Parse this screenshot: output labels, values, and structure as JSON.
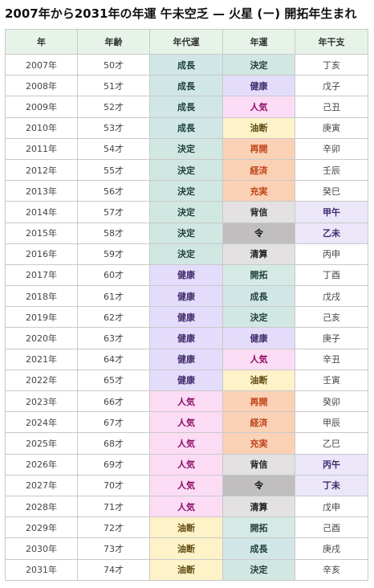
{
  "title": "2007年から2031年の年運 午未空乏 — 火星 (ー) 開拓年生まれ",
  "columns": [
    "年",
    "年齢",
    "年代運",
    "年運",
    "年干支"
  ],
  "rows": [
    {
      "year": "2007年",
      "age": "50才",
      "decade": "成長",
      "decade_color": "#d1e6e6",
      "decade_text": "#1e3f3f",
      "annual": "決定",
      "annual_color": "#d0e7e2",
      "annual_text": "#1f3f36",
      "stem": "丁亥",
      "stem_color": "#ffffff",
      "stem_text": "#444444",
      "stem_bold": false
    },
    {
      "year": "2008年",
      "age": "51才",
      "decade": "成長",
      "decade_color": "#d1e6e6",
      "decade_text": "#1e3f3f",
      "annual": "健康",
      "annual_color": "#e4dcfb",
      "annual_text": "#432f6e",
      "stem": "戊子",
      "stem_color": "#ffffff",
      "stem_text": "#444444",
      "stem_bold": false
    },
    {
      "year": "2009年",
      "age": "52才",
      "decade": "成長",
      "decade_color": "#d1e6e6",
      "decade_text": "#1e3f3f",
      "annual": "人気",
      "annual_color": "#fbdcf4",
      "annual_text": "#8e0d6b",
      "stem": "己丑",
      "stem_color": "#ffffff",
      "stem_text": "#444444",
      "stem_bold": false
    },
    {
      "year": "2010年",
      "age": "53才",
      "decade": "成長",
      "decade_color": "#d1e6e6",
      "decade_text": "#1e3f3f",
      "annual": "油断",
      "annual_color": "#fdf2c8",
      "annual_text": "#5e4a10",
      "stem": "庚寅",
      "stem_color": "#ffffff",
      "stem_text": "#444444",
      "stem_bold": false
    },
    {
      "year": "2011年",
      "age": "54才",
      "decade": "決定",
      "decade_color": "#d0e7e2",
      "decade_text": "#1f3f36",
      "annual": "再開",
      "annual_color": "#fbd1b5",
      "annual_text": "#c0441a",
      "stem": "辛卯",
      "stem_color": "#ffffff",
      "stem_text": "#444444",
      "stem_bold": false
    },
    {
      "year": "2012年",
      "age": "55才",
      "decade": "決定",
      "decade_color": "#d0e7e2",
      "decade_text": "#1f3f36",
      "annual": "経済",
      "annual_color": "#fbd1b5",
      "annual_text": "#c0441a",
      "stem": "壬辰",
      "stem_color": "#ffffff",
      "stem_text": "#444444",
      "stem_bold": false
    },
    {
      "year": "2013年",
      "age": "56才",
      "decade": "決定",
      "decade_color": "#d0e7e2",
      "decade_text": "#1f3f36",
      "annual": "充実",
      "annual_color": "#fbd1b5",
      "annual_text": "#c0441a",
      "stem": "癸巳",
      "stem_color": "#ffffff",
      "stem_text": "#444444",
      "stem_bold": false
    },
    {
      "year": "2014年",
      "age": "57才",
      "decade": "決定",
      "decade_color": "#d0e7e2",
      "decade_text": "#1f3f36",
      "annual": "背信",
      "annual_color": "#e3e1e1",
      "annual_text": "#222222",
      "stem": "甲午",
      "stem_color": "#ebe7f8",
      "stem_text": "#3b2b6e",
      "stem_bold": true
    },
    {
      "year": "2015年",
      "age": "58才",
      "decade": "決定",
      "decade_color": "#d0e7e2",
      "decade_text": "#1f3f36",
      "annual": "令",
      "annual_color": "#c0bebe",
      "annual_text": "#111111",
      "stem": "乙未",
      "stem_color": "#ebe7f8",
      "stem_text": "#3b2b6e",
      "stem_bold": true
    },
    {
      "year": "2016年",
      "age": "59才",
      "decade": "決定",
      "decade_color": "#d0e7e2",
      "decade_text": "#1f3f36",
      "annual": "清算",
      "annual_color": "#e3e1e1",
      "annual_text": "#222222",
      "stem": "丙申",
      "stem_color": "#ffffff",
      "stem_text": "#444444",
      "stem_bold": false
    },
    {
      "year": "2017年",
      "age": "60才",
      "decade": "健康",
      "decade_color": "#e4dcfb",
      "decade_text": "#432f6e",
      "annual": "開拓",
      "annual_color": "#d5eae5",
      "annual_text": "#1f3f36",
      "stem": "丁酉",
      "stem_color": "#ffffff",
      "stem_text": "#444444",
      "stem_bold": false
    },
    {
      "year": "2018年",
      "age": "61才",
      "decade": "健康",
      "decade_color": "#e4dcfb",
      "decade_text": "#432f6e",
      "annual": "成長",
      "annual_color": "#d1e6e6",
      "annual_text": "#1e3f3f",
      "stem": "戊戌",
      "stem_color": "#ffffff",
      "stem_text": "#444444",
      "stem_bold": false
    },
    {
      "year": "2019年",
      "age": "62才",
      "decade": "健康",
      "decade_color": "#e4dcfb",
      "decade_text": "#432f6e",
      "annual": "決定",
      "annual_color": "#d0e7e2",
      "annual_text": "#1f3f36",
      "stem": "己亥",
      "stem_color": "#ffffff",
      "stem_text": "#444444",
      "stem_bold": false
    },
    {
      "year": "2020年",
      "age": "63才",
      "decade": "健康",
      "decade_color": "#e4dcfb",
      "decade_text": "#432f6e",
      "annual": "健康",
      "annual_color": "#e4dcfb",
      "annual_text": "#432f6e",
      "stem": "庚子",
      "stem_color": "#ffffff",
      "stem_text": "#444444",
      "stem_bold": false
    },
    {
      "year": "2021年",
      "age": "64才",
      "decade": "健康",
      "decade_color": "#e4dcfb",
      "decade_text": "#432f6e",
      "annual": "人気",
      "annual_color": "#fbdcf4",
      "annual_text": "#8e0d6b",
      "stem": "辛丑",
      "stem_color": "#ffffff",
      "stem_text": "#444444",
      "stem_bold": false
    },
    {
      "year": "2022年",
      "age": "65才",
      "decade": "健康",
      "decade_color": "#e4dcfb",
      "decade_text": "#432f6e",
      "annual": "油断",
      "annual_color": "#fdf2c8",
      "annual_text": "#5e4a10",
      "stem": "壬寅",
      "stem_color": "#ffffff",
      "stem_text": "#444444",
      "stem_bold": false
    },
    {
      "year": "2023年",
      "age": "66才",
      "decade": "人気",
      "decade_color": "#fbdcf4",
      "decade_text": "#8e0d6b",
      "annual": "再開",
      "annual_color": "#fbd1b5",
      "annual_text": "#c0441a",
      "stem": "癸卯",
      "stem_color": "#ffffff",
      "stem_text": "#444444",
      "stem_bold": false
    },
    {
      "year": "2024年",
      "age": "67才",
      "decade": "人気",
      "decade_color": "#fbdcf4",
      "decade_text": "#8e0d6b",
      "annual": "経済",
      "annual_color": "#fbd1b5",
      "annual_text": "#c0441a",
      "stem": "甲辰",
      "stem_color": "#ffffff",
      "stem_text": "#444444",
      "stem_bold": false
    },
    {
      "year": "2025年",
      "age": "68才",
      "decade": "人気",
      "decade_color": "#fbdcf4",
      "decade_text": "#8e0d6b",
      "annual": "充実",
      "annual_color": "#fbd1b5",
      "annual_text": "#c0441a",
      "stem": "乙巳",
      "stem_color": "#ffffff",
      "stem_text": "#444444",
      "stem_bold": false
    },
    {
      "year": "2026年",
      "age": "69才",
      "decade": "人気",
      "decade_color": "#fbdcf4",
      "decade_text": "#8e0d6b",
      "annual": "背信",
      "annual_color": "#e3e1e1",
      "annual_text": "#222222",
      "stem": "丙午",
      "stem_color": "#ebe7f8",
      "stem_text": "#3b2b6e",
      "stem_bold": true
    },
    {
      "year": "2027年",
      "age": "70才",
      "decade": "人気",
      "decade_color": "#fbdcf4",
      "decade_text": "#8e0d6b",
      "annual": "令",
      "annual_color": "#c0bebe",
      "annual_text": "#111111",
      "stem": "丁未",
      "stem_color": "#ebe7f8",
      "stem_text": "#3b2b6e",
      "stem_bold": true
    },
    {
      "year": "2028年",
      "age": "71才",
      "decade": "人気",
      "decade_color": "#fbdcf4",
      "decade_text": "#8e0d6b",
      "annual": "清算",
      "annual_color": "#e3e1e1",
      "annual_text": "#222222",
      "stem": "戊申",
      "stem_color": "#ffffff",
      "stem_text": "#444444",
      "stem_bold": false
    },
    {
      "year": "2029年",
      "age": "72才",
      "decade": "油断",
      "decade_color": "#fdf2c8",
      "decade_text": "#5e4a10",
      "annual": "開拓",
      "annual_color": "#d5eae5",
      "annual_text": "#1f3f36",
      "stem": "己酉",
      "stem_color": "#ffffff",
      "stem_text": "#444444",
      "stem_bold": false
    },
    {
      "year": "2030年",
      "age": "73才",
      "decade": "油断",
      "decade_color": "#fdf2c8",
      "decade_text": "#5e4a10",
      "annual": "成長",
      "annual_color": "#d1e6e6",
      "annual_text": "#1e3f3f",
      "stem": "庚戌",
      "stem_color": "#ffffff",
      "stem_text": "#444444",
      "stem_bold": false
    },
    {
      "year": "2031年",
      "age": "74才",
      "decade": "油断",
      "decade_color": "#fdf2c8",
      "decade_text": "#5e4a10",
      "annual": "決定",
      "annual_color": "#d0e7e2",
      "annual_text": "#1f3f36",
      "stem": "辛亥",
      "stem_color": "#ffffff",
      "stem_text": "#444444",
      "stem_bold": false
    }
  ]
}
